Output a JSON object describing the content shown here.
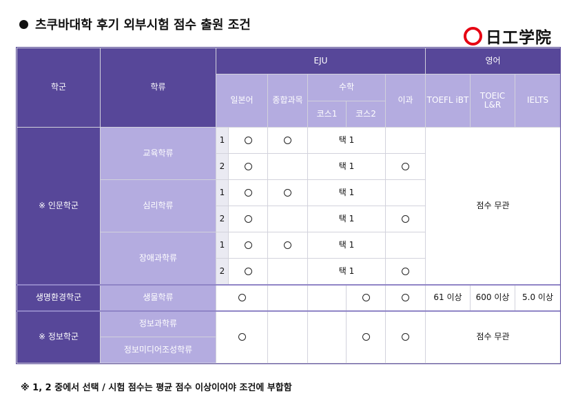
{
  "title": "츠쿠바대학 후기 외부시험 점수 출원 조건",
  "logo": {
    "mark": "red-ring-icon",
    "text": "日工学院",
    "brand_color": "#e60012"
  },
  "colors": {
    "header_dark": "#574799",
    "header_light": "#b4ace0",
    "number_cell": "#eaeaf2"
  },
  "header": {
    "group": "학군",
    "category": "학류",
    "eju": "EJU",
    "english": "영어",
    "japanese": "일본어",
    "general": "종합과목",
    "math": "수학",
    "course1": "코스1",
    "course2": "코스2",
    "science": "이과",
    "toefl": "TOEFL iBT",
    "toeic": "TOEIC L&R",
    "ielts": "IELTS"
  },
  "groups": [
    {
      "name": "※ 인문학군",
      "english_note": "점수 무관",
      "categories": [
        {
          "name": "교육학류",
          "rows": [
            {
              "num": "1",
              "japanese": "circle",
              "general": "circle",
              "math": "택 1",
              "science": ""
            },
            {
              "num": "2",
              "japanese": "circle",
              "general": "",
              "math": "택 1",
              "science": "circle"
            }
          ]
        },
        {
          "name": "심리학류",
          "rows": [
            {
              "num": "1",
              "japanese": "circle",
              "general": "circle",
              "math": "택 1",
              "science": ""
            },
            {
              "num": "2",
              "japanese": "circle",
              "general": "",
              "math": "택 1",
              "science": "circle"
            }
          ]
        },
        {
          "name": "장애과학류",
          "rows": [
            {
              "num": "1",
              "japanese": "circle",
              "general": "circle",
              "math": "택 1",
              "science": ""
            },
            {
              "num": "2",
              "japanese": "circle",
              "general": "",
              "math": "택 1",
              "science": "circle"
            }
          ]
        }
      ]
    },
    {
      "name": "생명환경학군",
      "category": "생물학류",
      "japanese": "circle",
      "general": "",
      "course1": "",
      "course2": "circle",
      "science": "circle",
      "toefl": "61 이상",
      "toeic": "600 이상",
      "ielts": "5.0 이상"
    },
    {
      "name": "※ 정보학군",
      "categories": [
        "정보과학류",
        "정보미디어조성학류"
      ],
      "japanese": "circle",
      "general": "",
      "course1": "",
      "course2": "circle",
      "science": "circle",
      "english_note": "점수 무관"
    }
  ],
  "footnote": "※ 1, 2 중에서 선택 / 시험 점수는 평균 점수 이상이어야 조건에 부합함"
}
